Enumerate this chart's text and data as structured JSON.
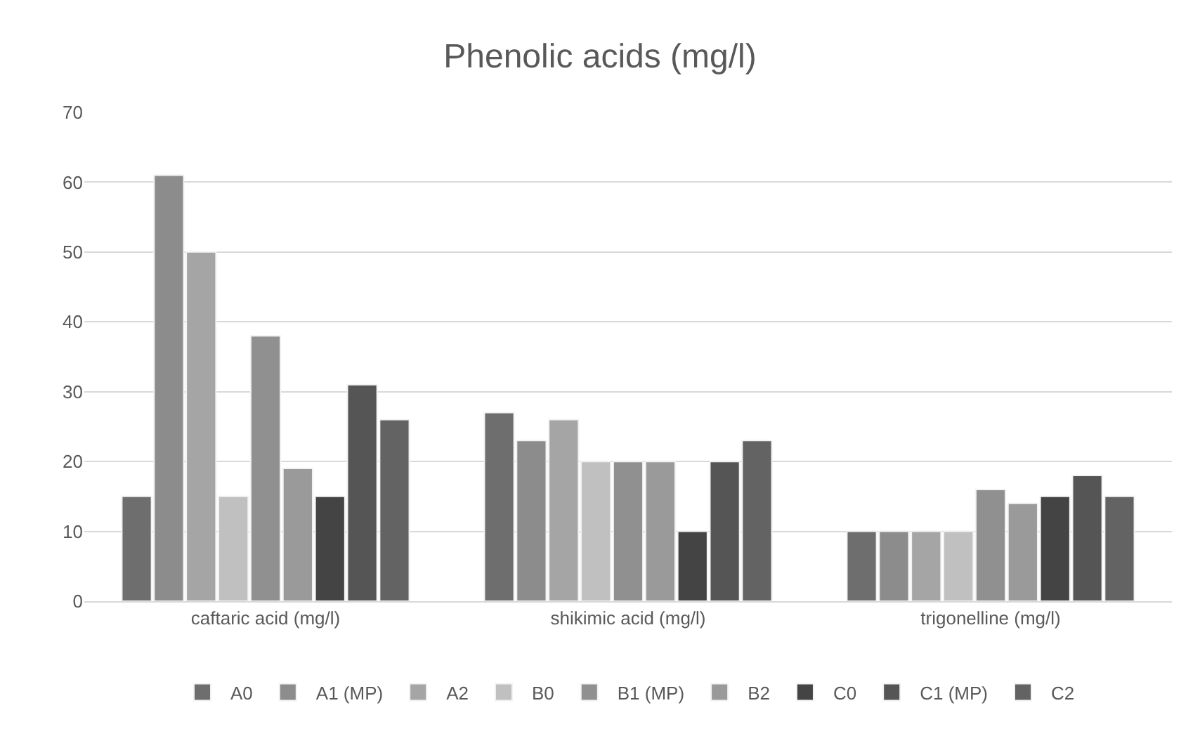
{
  "chart_data": {
    "type": "bar",
    "title": "Phenolic acids (mg/l)",
    "categories": [
      "caftaric acid (mg/l)",
      "shikimic acid (mg/l)",
      "trigonelline (mg/l)"
    ],
    "series": [
      {
        "name": "A0",
        "color": "#6e6e6e",
        "values": [
          15,
          27,
          10
        ]
      },
      {
        "name": "A1 (MP)",
        "color": "#8c8c8c",
        "values": [
          61,
          23,
          10
        ]
      },
      {
        "name": "A2",
        "color": "#a5a5a5",
        "values": [
          50,
          26,
          10
        ]
      },
      {
        "name": "B0",
        "color": "#c0c0c0",
        "values": [
          15,
          20,
          10
        ]
      },
      {
        "name": "B1 (MP)",
        "color": "#909090",
        "values": [
          38,
          20,
          16
        ]
      },
      {
        "name": "B2",
        "color": "#9a9a9a",
        "values": [
          19,
          20,
          14
        ]
      },
      {
        "name": "C0",
        "color": "#444444",
        "values": [
          15,
          10,
          15
        ]
      },
      {
        "name": "C1 (MP)",
        "color": "#555555",
        "values": [
          31,
          20,
          18
        ]
      },
      {
        "name": "C2",
        "color": "#636363",
        "values": [
          26,
          23,
          15
        ]
      }
    ],
    "ylim": [
      0,
      70
    ],
    "yticks": [
      0,
      10,
      20,
      30,
      40,
      50,
      60,
      70
    ],
    "grid": "y",
    "legend": "bottom"
  }
}
